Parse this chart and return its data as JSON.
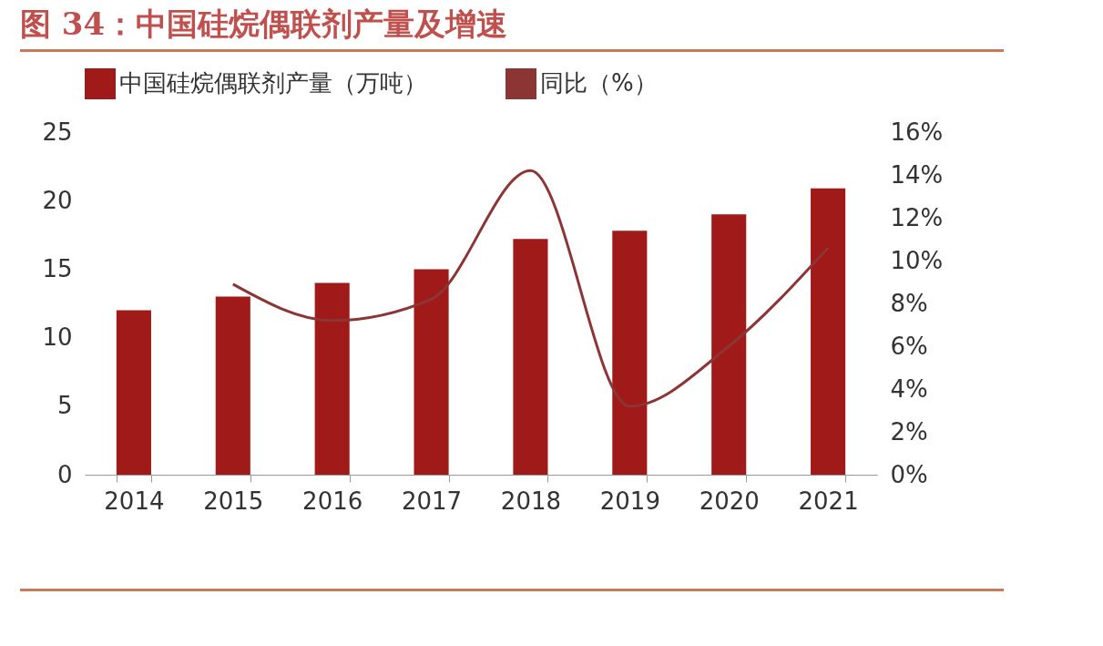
{
  "chart_data": {
    "type": "bar",
    "title": "图 34：中国硅烷偶联剂产量及增速",
    "categories": [
      "2014",
      "2015",
      "2016",
      "2017",
      "2018",
      "2019",
      "2020",
      "2021"
    ],
    "series": [
      {
        "name": "中国硅烷偶联剂产量（万吨）",
        "color": "#a11a1a",
        "values": [
          12,
          13,
          14,
          15,
          17.2,
          17.8,
          19,
          20.9
        ]
      },
      {
        "name": "同比（%）",
        "type": "line",
        "axis": "y2",
        "color": "#8b3535",
        "values": [
          null,
          8.9,
          7.2,
          8.2,
          14.2,
          3.2,
          6.0,
          10.6
        ]
      }
    ],
    "ylim": [
      0,
      25
    ],
    "yticks": [
      0,
      5,
      10,
      15,
      20,
      25
    ],
    "y2lim": [
      0,
      16
    ],
    "y2ticks": [
      {
        "value": 0,
        "label": "0%"
      },
      {
        "value": 2,
        "label": "2%"
      },
      {
        "value": 4,
        "label": "4%"
      },
      {
        "value": 6,
        "label": "6%"
      },
      {
        "value": 8,
        "label": "8%"
      },
      {
        "value": 10,
        "label": "10%"
      },
      {
        "value": 12,
        "label": "12%"
      },
      {
        "value": 14,
        "label": "14%"
      },
      {
        "value": 16,
        "label": "16%"
      }
    ],
    "grid": false,
    "legend": "top"
  }
}
